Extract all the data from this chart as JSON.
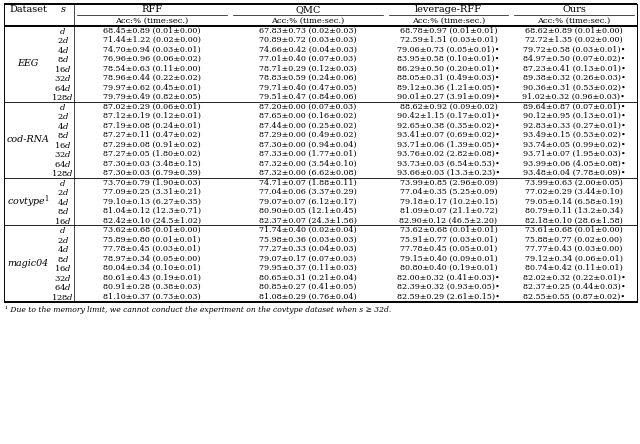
{
  "footnote": "¹ Due to the memory limit, we cannot conduct the experiment on the covtype dataset when s ≥ 32d.",
  "s_values_EEG": [
    "d",
    "2d",
    "4d",
    "8d",
    "16d",
    "32d",
    "64d",
    "128d"
  ],
  "s_values_codRNA": [
    "d",
    "2d",
    "4d",
    "8d",
    "16d",
    "32d",
    "64d",
    "128d"
  ],
  "s_values_covtype": [
    "d",
    "2d",
    "4d",
    "8d",
    "16d"
  ],
  "s_values_magic04": [
    "d",
    "2d",
    "4d",
    "8d",
    "16d",
    "32d",
    "64d",
    "128d"
  ],
  "data_EEG": [
    [
      "68.45±0.89 (0.01±0.00)",
      "67.83±0.73 (0.02±0.03)",
      "68.78±0.97 (0.01±0.01)",
      "68.62±0.89 (0.01±0.00)"
    ],
    [
      "71.44±1.22 (0.02±0.00)",
      "70.89±0.72 (0.03±0.03)",
      "72.59±1.51 (0.03±0.01)",
      "72.72±1.35 (0.02±0.00)"
    ],
    [
      "74.70±0.94 (0.03±0.01)",
      "74.66±0.42 (0.04±0.03)",
      "79.06±0.73 (0.05±0.01)•",
      "79.72±0.58 (0.03±0.01)•"
    ],
    [
      "76.96±0.96 (0.06±0.02)",
      "77.01±0.40 (0.07±0.03)",
      "83.95±0.58 (0.10±0.01)•",
      "84.97±0.50 (0.07±0.02)•"
    ],
    [
      "78.54±0.63 (0.11±0.00)",
      "78.71±0.29 (0.12±0.03)",
      "86.29±0.50 (0.20±0.01)•",
      "87.23±0.41 (0.13±0.01)•"
    ],
    [
      "78.96±0.44 (0.22±0.02)",
      "78.83±0.59 (0.24±0.06)",
      "88.05±0.31 (0.49±0.03)•",
      "89.38±0.32 (0.26±0.03)•"
    ],
    [
      "79.97±0.62 (0.45±0.01)",
      "79.71±0.40 (0.47±0.05)",
      "89.12±0.36 (1.21±0.05)•",
      "90.36±0.31 (0.53±0.02)•"
    ],
    [
      "79.79±0.49 (0.82±0.05)",
      "79.51±0.47 (0.84±0.06)",
      "90.01±0.27 (3.91±0.09)•",
      "91.02±0.32 (0.96±0.03)•"
    ]
  ],
  "data_codRNA": [
    [
      "87.02±0.29 (0.06±0.01)",
      "87.20±0.00 (0.07±0.03)",
      "88.62±0.92 (0.09±0.02)",
      "89.64±0.87 (0.07±0.01)•"
    ],
    [
      "87.12±0.19 (0.12±0.01)",
      "87.65±0.00 (0.16±0.02)",
      "90.42±1.15 (0.17±0.01)•",
      "90.12±0.95 (0.13±0.01)•"
    ],
    [
      "87.19±0.08 (0.24±0.01)",
      "87.44±0.00 (0.25±0.02)",
      "92.65±0.38 (0.35±0.02)•",
      "92.83±0.33 (0.27±0.01)•"
    ],
    [
      "87.27±0.11 (0.47±0.02)",
      "87.29±0.00 (0.49±0.02)",
      "93.41±0.07 (0.69±0.02)•",
      "93.49±0.15 (0.53±0.02)•"
    ],
    [
      "87.29±0.08 (0.91±0.02)",
      "87.30±0.00 (0.94±0.04)",
      "93.71±0.06 (1.39±0.05)•",
      "93.74±0.05 (0.99±0.02)•"
    ],
    [
      "87.27±0.05 (1.80±0.02)",
      "87.33±0.00 (1.77±0.01)",
      "93.76±0.02 (2.82±0.08)•",
      "93.71±0.07 (1.95±0.03)•"
    ],
    [
      "87.30±0.03 (3.48±0.15)",
      "87.32±0.00 (3.54±0.10)",
      "93.73±0.03 (6.54±0.53)•",
      "93.99±0.06 (4.05±0.08)•"
    ],
    [
      "87.30±0.03 (6.79±0.39)",
      "87.32±0.00 (6.62±0.08)",
      "93.66±0.03 (13.3±0.23)•",
      "93.48±0.04 (7.78±0.09)•"
    ]
  ],
  "data_covtype": [
    [
      "73.70±0.79 (1.90±0.03)",
      "74.71±0.07 (1.88±0.11)",
      "73.99±0.85 (2.96±0.09)",
      "73.99±0.63 (2.00±0.05)"
    ],
    [
      "77.09±0.25 (3.31±0.21)",
      "77.04±0.06 (3.37±0.29)",
      "77.04±0.35 (5.25±0.09)",
      "77.02±0.29 (3.44±0.10)"
    ],
    [
      "79.10±0.13 (6.27±0.35)",
      "79.07±0.07 (6.12±0.17)",
      "79.18±0.17 (10.2±0.15)",
      "79.05±0.14 (6.58±0.19)"
    ],
    [
      "81.04±0.12 (12.3±0.71)",
      "80.90±0.05 (12.1±0.45)",
      "81.09±0.07 (21.1±0.72)",
      "80.79±0.11 (13.2±0.34)"
    ],
    [
      "82.42±0.10 (24.5±1.02)",
      "82.37±0.07 (24.3±1.56)",
      "82.90±0.12 (46.5±2.20)",
      "82.18±0.10 (28.6±1.58)"
    ]
  ],
  "data_magic04": [
    [
      "73.62±0.68 (0.01±0.00)",
      "71.74±0.40 (0.02±0.04)",
      "73.62±0.68 (0.01±0.01)",
      "73.61±0.68 (0.01±0.00)"
    ],
    [
      "75.89±0.80 (0.01±0.01)",
      "75.98±0.36 (0.03±0.03)",
      "75.91±0.77 (0.03±0.01)",
      "75.88±0.77 (0.02±0.00)"
    ],
    [
      "77.78±0.45 (0.03±0.01)",
      "77.27±0.33 (0.04±0.03)",
      "77.78±0.45 (0.05±0.01)",
      "77.77±0.43 (0.03±0.00)"
    ],
    [
      "78.97±0.34 (0.05±0.00)",
      "79.07±0.17 (0.07±0.03)",
      "79.15±0.40 (0.09±0.01)",
      "79.12±0.34 (0.06±0.01)"
    ],
    [
      "80.04±0.34 (0.10±0.01)",
      "79.95±0.37 (0.11±0.03)",
      "80.80±0.40 (0.19±0.01)",
      "80.74±0.42 (0.11±0.01)"
    ],
    [
      "80.61±0.43 (0.19±0.01)",
      "80.65±0.31 (0.21±0.04)",
      "82.00±0.32 (0.41±0.03)•",
      "82.02±0.32 (0.22±0.01)•"
    ],
    [
      "80.91±0.28 (0.38±0.03)",
      "80.85±0.27 (0.41±0.05)",
      "82.39±0.32 (0.93±0.05)•",
      "82.37±0.25 (0.44±0.03)•"
    ],
    [
      "81.10±0.37 (0.73±0.03)",
      "81.08±0.29 (0.76±0.04)",
      "82.59±0.29 (2.61±0.15)•",
      "82.55±0.55 (0.87±0.02)•"
    ]
  ]
}
